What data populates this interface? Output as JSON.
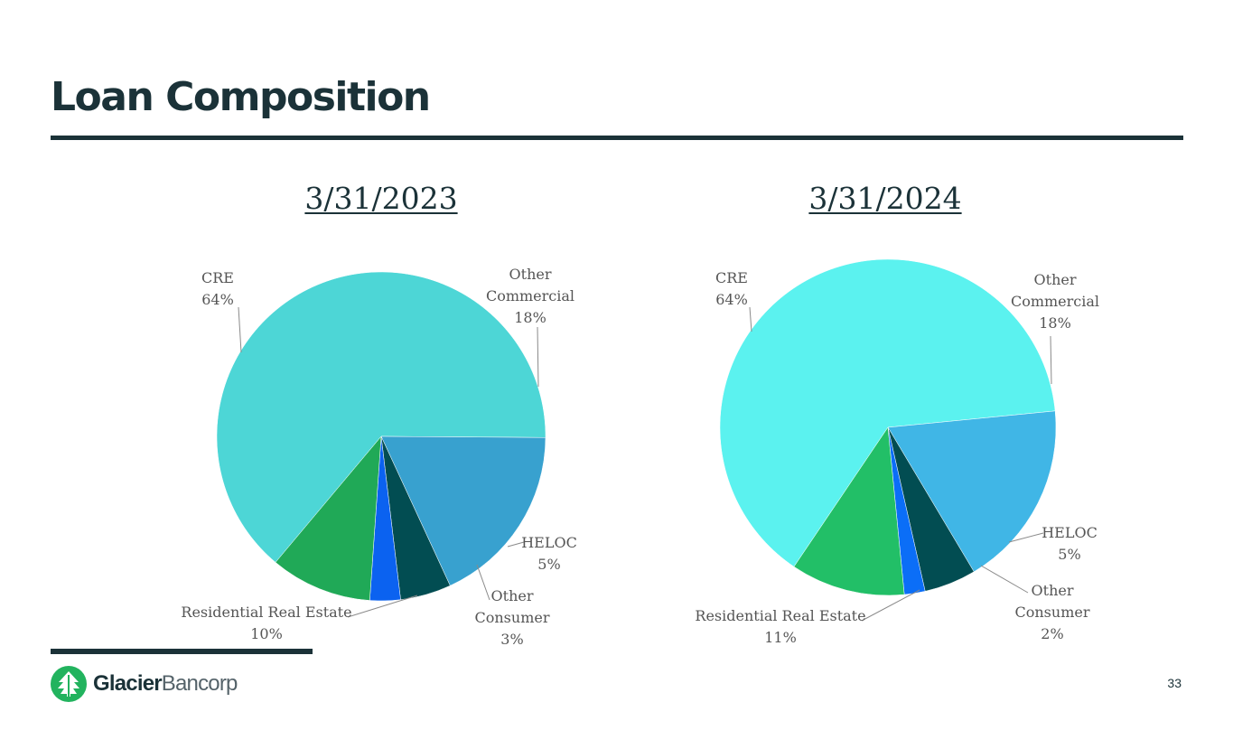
{
  "slide": {
    "title": "Loan Composition",
    "page_number": "33",
    "logo": {
      "brand_bold": "Glacier",
      "brand_light": "Bancorp"
    }
  },
  "chart_data": [
    {
      "type": "pie",
      "title": "3/31/2023",
      "slices": [
        {
          "label": "CRE",
          "value": 64,
          "display": "64%",
          "color": "#4dd6d6"
        },
        {
          "label": "Other Commercial",
          "value": 18,
          "display": "18%",
          "color": "#38a1cf"
        },
        {
          "label": "HELOC",
          "value": 5,
          "display": "5%",
          "color": "#024d52"
        },
        {
          "label": "Other Consumer",
          "value": 3,
          "display": "3%",
          "color": "#0b62f0"
        },
        {
          "label": "Residential Real Estate",
          "value": 10,
          "display": "10%",
          "color": "#20a957"
        }
      ]
    },
    {
      "type": "pie",
      "title": "3/31/2024",
      "slices": [
        {
          "label": "CRE",
          "value": 64,
          "display": "64%",
          "color": "#5bf2ef"
        },
        {
          "label": "Other Commercial",
          "value": 18,
          "display": "18%",
          "color": "#40b6e6"
        },
        {
          "label": "HELOC",
          "value": 5,
          "display": "5%",
          "color": "#024d52"
        },
        {
          "label": "Other Consumer",
          "value": 2,
          "display": "2%",
          "color": "#0b6ef7"
        },
        {
          "label": "Residential Real Estate",
          "value": 11,
          "display": "11%",
          "color": "#22bf67"
        }
      ]
    }
  ]
}
